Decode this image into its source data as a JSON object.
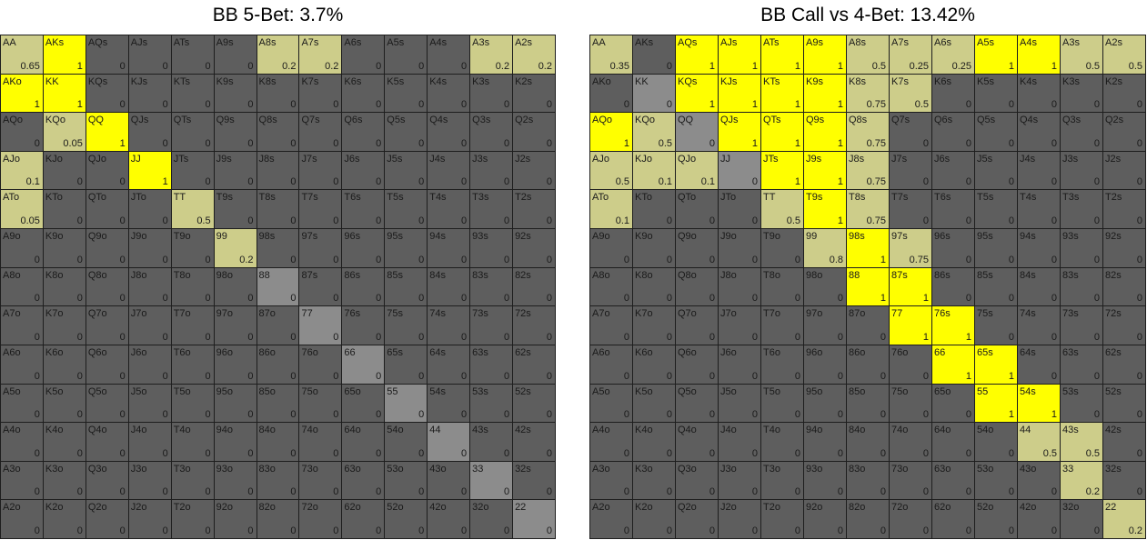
{
  "colors": {
    "full": "#ffff00",
    "partial": "#cdcd8a",
    "pair_zero": "#8c8c8c",
    "zero": "#5e5e5e",
    "grid_line": "#1e1e1e"
  },
  "ranks": [
    "A",
    "K",
    "Q",
    "J",
    "T",
    "9",
    "8",
    "7",
    "6",
    "5",
    "4",
    "3",
    "2"
  ],
  "chart_data": [
    {
      "type": "heatmap",
      "title": "BB 5-Bet: 3.7%",
      "rows": [
        [
          "AA",
          "AKs",
          "AQs",
          "AJs",
          "ATs",
          "A9s",
          "A8s",
          "A7s",
          "A6s",
          "A5s",
          "A4s",
          "A3s",
          "A2s"
        ],
        [
          "AKo",
          "KK",
          "KQs",
          "KJs",
          "KTs",
          "K9s",
          "K8s",
          "K7s",
          "K6s",
          "K5s",
          "K4s",
          "K3s",
          "K2s"
        ],
        [
          "AQo",
          "KQo",
          "QQ",
          "QJs",
          "QTs",
          "Q9s",
          "Q8s",
          "Q7s",
          "Q6s",
          "Q5s",
          "Q4s",
          "Q3s",
          "Q2s"
        ],
        [
          "AJo",
          "KJo",
          "QJo",
          "JJ",
          "JTs",
          "J9s",
          "J8s",
          "J7s",
          "J6s",
          "J5s",
          "J4s",
          "J3s",
          "J2s"
        ],
        [
          "ATo",
          "KTo",
          "QTo",
          "JTo",
          "TT",
          "T9s",
          "T8s",
          "T7s",
          "T6s",
          "T5s",
          "T4s",
          "T3s",
          "T2s"
        ],
        [
          "A9o",
          "K9o",
          "Q9o",
          "J9o",
          "T9o",
          "99",
          "98s",
          "97s",
          "96s",
          "95s",
          "94s",
          "93s",
          "92s"
        ],
        [
          "A8o",
          "K8o",
          "Q8o",
          "J8o",
          "T8o",
          "98o",
          "88",
          "87s",
          "86s",
          "85s",
          "84s",
          "83s",
          "82s"
        ],
        [
          "A7o",
          "K7o",
          "Q7o",
          "J7o",
          "T7o",
          "97o",
          "87o",
          "77",
          "76s",
          "75s",
          "74s",
          "73s",
          "72s"
        ],
        [
          "A6o",
          "K6o",
          "Q6o",
          "J6o",
          "T6o",
          "96o",
          "86o",
          "76o",
          "66",
          "65s",
          "64s",
          "63s",
          "62s"
        ],
        [
          "A5o",
          "K5o",
          "Q5o",
          "J5o",
          "T5o",
          "95o",
          "85o",
          "75o",
          "65o",
          "55",
          "54s",
          "53s",
          "52s"
        ],
        [
          "A4o",
          "K4o",
          "Q4o",
          "J4o",
          "T4o",
          "94o",
          "84o",
          "74o",
          "64o",
          "54o",
          "44",
          "43s",
          "42s"
        ],
        [
          "A3o",
          "K3o",
          "Q3o",
          "J3o",
          "T3o",
          "93o",
          "83o",
          "73o",
          "63o",
          "53o",
          "43o",
          "33",
          "32s"
        ],
        [
          "A2o",
          "K2o",
          "Q2o",
          "J2o",
          "T2o",
          "92o",
          "82o",
          "72o",
          "62o",
          "52o",
          "42o",
          "32o",
          "22"
        ]
      ],
      "values": [
        [
          "0.65",
          "1",
          "0",
          "0",
          "0",
          "0",
          "0.2",
          "0.2",
          "0",
          "0",
          "0",
          "0.2",
          "0.2"
        ],
        [
          "1",
          "1",
          "0",
          "0",
          "0",
          "0",
          "0",
          "0",
          "0",
          "0",
          "0",
          "0",
          "0"
        ],
        [
          "0",
          "0.05",
          "1",
          "0",
          "0",
          "0",
          "0",
          "0",
          "0",
          "0",
          "0",
          "0",
          "0"
        ],
        [
          "0.1",
          "0",
          "0",
          "1",
          "0",
          "0",
          "0",
          "0",
          "0",
          "0",
          "0",
          "0",
          "0"
        ],
        [
          "0.05",
          "0",
          "0",
          "0",
          "0.5",
          "0",
          "0",
          "0",
          "0",
          "0",
          "0",
          "0",
          "0"
        ],
        [
          "0",
          "0",
          "0",
          "0",
          "0",
          "0.2",
          "0",
          "0",
          "0",
          "0",
          "0",
          "0",
          "0"
        ],
        [
          "0",
          "0",
          "0",
          "0",
          "0",
          "0",
          "0",
          "0",
          "0",
          "0",
          "0",
          "0",
          "0"
        ],
        [
          "0",
          "0",
          "0",
          "0",
          "0",
          "0",
          "0",
          "0",
          "0",
          "0",
          "0",
          "0",
          "0"
        ],
        [
          "0",
          "0",
          "0",
          "0",
          "0",
          "0",
          "0",
          "0",
          "0",
          "0",
          "0",
          "0",
          "0"
        ],
        [
          "0",
          "0",
          "0",
          "0",
          "0",
          "0",
          "0",
          "0",
          "0",
          "0",
          "0",
          "0",
          "0"
        ],
        [
          "0",
          "0",
          "0",
          "0",
          "0",
          "0",
          "0",
          "0",
          "0",
          "0",
          "0",
          "0",
          "0"
        ],
        [
          "0",
          "0",
          "0",
          "0",
          "0",
          "0",
          "0",
          "0",
          "0",
          "0",
          "0",
          "0",
          "0"
        ],
        [
          "0",
          "0",
          "0",
          "0",
          "0",
          "0",
          "0",
          "0",
          "0",
          "0",
          "0",
          "0",
          "0"
        ]
      ]
    },
    {
      "type": "heatmap",
      "title": "BB Call vs 4-Bet: 13.42%",
      "rows": [
        [
          "AA",
          "AKs",
          "AQs",
          "AJs",
          "ATs",
          "A9s",
          "A8s",
          "A7s",
          "A6s",
          "A5s",
          "A4s",
          "A3s",
          "A2s"
        ],
        [
          "AKo",
          "KK",
          "KQs",
          "KJs",
          "KTs",
          "K9s",
          "K8s",
          "K7s",
          "K6s",
          "K5s",
          "K4s",
          "K3s",
          "K2s"
        ],
        [
          "AQo",
          "KQo",
          "QQ",
          "QJs",
          "QTs",
          "Q9s",
          "Q8s",
          "Q7s",
          "Q6s",
          "Q5s",
          "Q4s",
          "Q3s",
          "Q2s"
        ],
        [
          "AJo",
          "KJo",
          "QJo",
          "JJ",
          "JTs",
          "J9s",
          "J8s",
          "J7s",
          "J6s",
          "J5s",
          "J4s",
          "J3s",
          "J2s"
        ],
        [
          "ATo",
          "KTo",
          "QTo",
          "JTo",
          "TT",
          "T9s",
          "T8s",
          "T7s",
          "T6s",
          "T5s",
          "T4s",
          "T3s",
          "T2s"
        ],
        [
          "A9o",
          "K9o",
          "Q9o",
          "J9o",
          "T9o",
          "99",
          "98s",
          "97s",
          "96s",
          "95s",
          "94s",
          "93s",
          "92s"
        ],
        [
          "A8o",
          "K8o",
          "Q8o",
          "J8o",
          "T8o",
          "98o",
          "88",
          "87s",
          "86s",
          "85s",
          "84s",
          "83s",
          "82s"
        ],
        [
          "A7o",
          "K7o",
          "Q7o",
          "J7o",
          "T7o",
          "97o",
          "87o",
          "77",
          "76s",
          "75s",
          "74s",
          "73s",
          "72s"
        ],
        [
          "A6o",
          "K6o",
          "Q6o",
          "J6o",
          "T6o",
          "96o",
          "86o",
          "76o",
          "66",
          "65s",
          "64s",
          "63s",
          "62s"
        ],
        [
          "A5o",
          "K5o",
          "Q5o",
          "J5o",
          "T5o",
          "95o",
          "85o",
          "75o",
          "65o",
          "55",
          "54s",
          "53s",
          "52s"
        ],
        [
          "A4o",
          "K4o",
          "Q4o",
          "J4o",
          "T4o",
          "94o",
          "84o",
          "74o",
          "64o",
          "54o",
          "44",
          "43s",
          "42s"
        ],
        [
          "A3o",
          "K3o",
          "Q3o",
          "J3o",
          "T3o",
          "93o",
          "83o",
          "73o",
          "63o",
          "53o",
          "43o",
          "33",
          "32s"
        ],
        [
          "A2o",
          "K2o",
          "Q2o",
          "J2o",
          "T2o",
          "92o",
          "82o",
          "72o",
          "62o",
          "52o",
          "42o",
          "32o",
          "22"
        ]
      ],
      "values": [
        [
          "0.35",
          "0",
          "1",
          "1",
          "1",
          "1",
          "0.5",
          "0.25",
          "0.25",
          "1",
          "1",
          "0.5",
          "0.5"
        ],
        [
          "0",
          "0",
          "1",
          "1",
          "1",
          "1",
          "0.75",
          "0.5",
          "0",
          "0",
          "0",
          "0",
          "0"
        ],
        [
          "1",
          "0.5",
          "0",
          "1",
          "1",
          "1",
          "0.75",
          "0",
          "0",
          "0",
          "0",
          "0",
          "0"
        ],
        [
          "0.5",
          "0.1",
          "0.1",
          "0",
          "1",
          "1",
          "0.75",
          "0",
          "0",
          "0",
          "0",
          "0",
          "0"
        ],
        [
          "0.1",
          "0",
          "0",
          "0",
          "0.5",
          "1",
          "0.75",
          "0",
          "0",
          "0",
          "0",
          "0",
          "0"
        ],
        [
          "0",
          "0",
          "0",
          "0",
          "0",
          "0.8",
          "1",
          "0.75",
          "0",
          "0",
          "0",
          "0",
          "0"
        ],
        [
          "0",
          "0",
          "0",
          "0",
          "0",
          "0",
          "1",
          "1",
          "0",
          "0",
          "0",
          "0",
          "0"
        ],
        [
          "0",
          "0",
          "0",
          "0",
          "0",
          "0",
          "0",
          "1",
          "1",
          "0",
          "0",
          "0",
          "0"
        ],
        [
          "0",
          "0",
          "0",
          "0",
          "0",
          "0",
          "0",
          "0",
          "1",
          "1",
          "0",
          "0",
          "0"
        ],
        [
          "0",
          "0",
          "0",
          "0",
          "0",
          "0",
          "0",
          "0",
          "0",
          "1",
          "1",
          "0",
          "0"
        ],
        [
          "0",
          "0",
          "0",
          "0",
          "0",
          "0",
          "0",
          "0",
          "0",
          "0",
          "0.5",
          "0.5",
          "0"
        ],
        [
          "0",
          "0",
          "0",
          "0",
          "0",
          "0",
          "0",
          "0",
          "0",
          "0",
          "0",
          "0.2",
          "0"
        ],
        [
          "0",
          "0",
          "0",
          "0",
          "0",
          "0",
          "0",
          "0",
          "0",
          "0",
          "0",
          "0",
          "0.2"
        ]
      ]
    }
  ]
}
